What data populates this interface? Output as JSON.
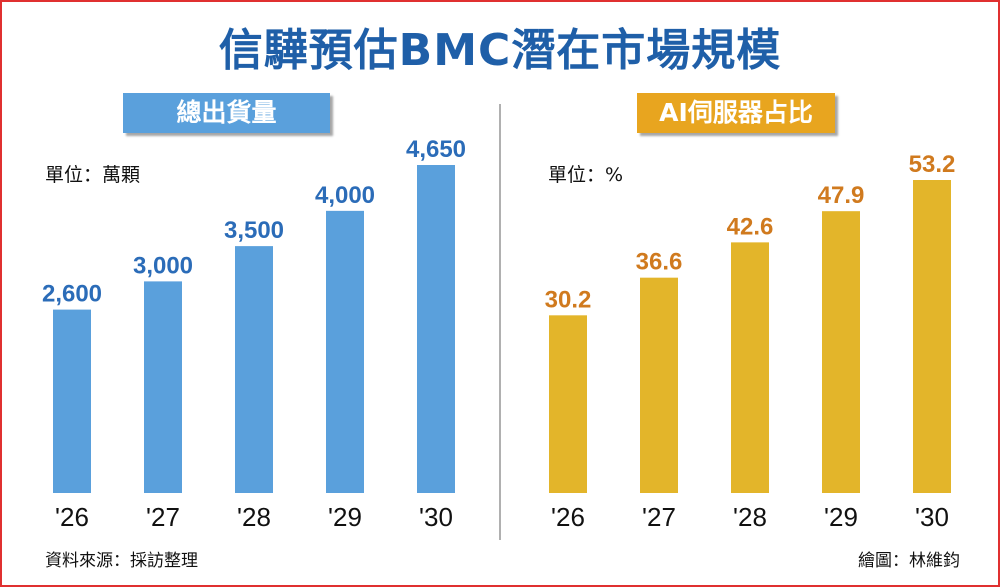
{
  "title": "信驊預估BMC潛在市場規模",
  "panels": {
    "left": {
      "label": "總出貨量",
      "unit": "單位：萬顆"
    },
    "right": {
      "label": "AI伺服器占比",
      "unit": "單位：%"
    }
  },
  "footer": {
    "source": "資料來源：採訪整理",
    "credit": "繪圖：林維鈞"
  },
  "colors": {
    "title": "#1f5fa8",
    "left_bar": "#5aa0dc",
    "left_value": "#2b6cb8",
    "right_bar": "#e3b52a",
    "right_value": "#d07a1e",
    "frame": "#e03030"
  },
  "chart_data": [
    {
      "type": "bar",
      "title": "總出貨量",
      "unit": "萬顆",
      "categories": [
        "'26",
        "'27",
        "'28",
        "'29",
        "'30"
      ],
      "values": [
        2600,
        3000,
        3500,
        4000,
        4650
      ],
      "value_labels": [
        "2,600",
        "3,000",
        "3,500",
        "4,000",
        "4,650"
      ],
      "ylim": [
        0,
        4650
      ],
      "grid": false,
      "legend": "none"
    },
    {
      "type": "bar",
      "title": "AI伺服器占比",
      "unit": "%",
      "categories": [
        "'26",
        "'27",
        "'28",
        "'29",
        "'30"
      ],
      "values": [
        30.2,
        36.6,
        42.6,
        47.9,
        53.2
      ],
      "value_labels": [
        "30.2",
        "36.6",
        "42.6",
        "47.9",
        "53.2"
      ],
      "ylim": [
        0,
        53.2
      ],
      "grid": false,
      "legend": "none"
    }
  ]
}
